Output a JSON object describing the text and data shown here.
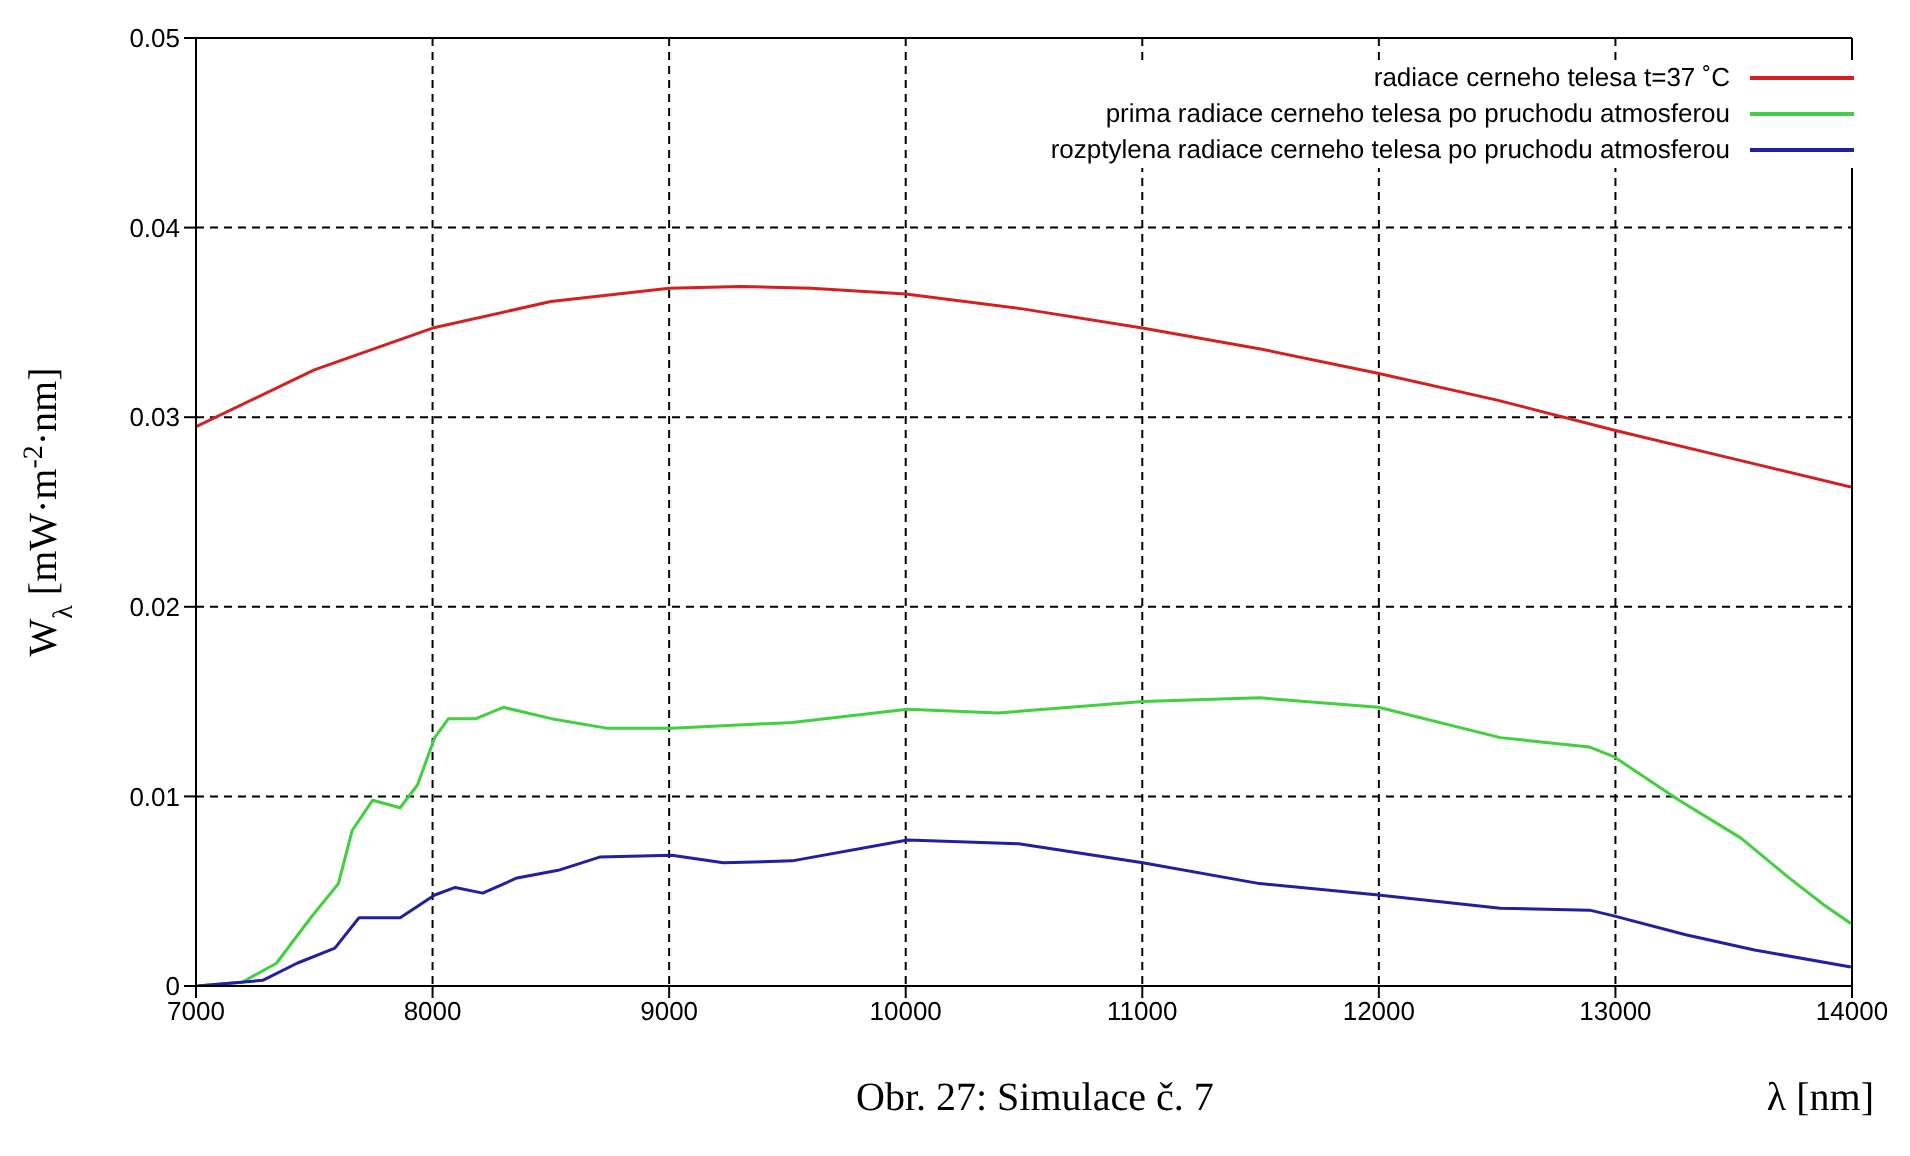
{
  "chart_data": {
    "type": "line",
    "xlabel": "λ [nm]",
    "ylabel": "W$_{λ}$ [mW·m$^{-2}$·nm]",
    "annotations": [
      "Obr. 27: Simulace č. 7"
    ],
    "xlim": [
      7000,
      14000
    ],
    "xticks": [
      7000,
      8000,
      9000,
      10000,
      11000,
      12000,
      13000,
      14000
    ],
    "ylim": [
      0,
      0.05
    ],
    "yticks": [
      0,
      0.01,
      0.02,
      0.03,
      0.04,
      0.05
    ],
    "grid": true,
    "legend": "top right",
    "marker": "none",
    "line_style": "solid",
    "series": [
      {
        "name": "radiace cerneho telesa t=37 ˚C",
        "color": "#d42020",
        "x": [
          7000,
          7500,
          8000,
          8500,
          9000,
          9300,
          9600,
          10000,
          10500,
          11000,
          11500,
          12000,
          12500,
          13000,
          13500,
          14000
        ],
        "values": [
          0.0295,
          0.0325,
          0.0347,
          0.0361,
          0.0368,
          0.0369,
          0.0368,
          0.0365,
          0.0357,
          0.0347,
          0.0336,
          0.0323,
          0.0309,
          0.0293,
          0.0278,
          0.0263
        ]
      },
      {
        "name": "prima radiace cerneho telesa po pruchodu atmosferou",
        "color": "#40d040",
        "x": [
          7006,
          7195,
          7340,
          7485,
          7602,
          7660,
          7747,
          7863,
          7936,
          8009,
          8067,
          8183,
          8299,
          8502,
          8735,
          9010,
          9520,
          10008,
          10391,
          11002,
          11496,
          11998,
          12513,
          12891,
          12993,
          13269,
          13531,
          13734,
          13879,
          13995
        ],
        "values": [
          0,
          0.0002,
          0.0012,
          0.0036,
          0.0054,
          0.0082,
          0.0098,
          0.0094,
          0.0106,
          0.0131,
          0.0141,
          0.0141,
          0.0147,
          0.0141,
          0.0136,
          0.0136,
          0.0139,
          0.0146,
          0.0144,
          0.015,
          0.0152,
          0.0147,
          0.0131,
          0.0126,
          0.0121,
          0.0098,
          0.0078,
          0.0057,
          0.0043,
          0.0033
        ]
      },
      {
        "name": "rozptylena radiace cerneho telesa po pruchodu atmosferou",
        "color": "#2020a0",
        "x": [
          7006,
          7282,
          7427,
          7587,
          7689,
          7863,
          8009,
          8096,
          8212,
          8357,
          8531,
          8706,
          9011,
          9229,
          9520,
          10008,
          10478,
          11002,
          11496,
          11998,
          12513,
          12891,
          12993,
          13297,
          13588,
          13995
        ],
        "values": [
          0,
          0.0003,
          0.0012,
          0.002,
          0.0036,
          0.0036,
          0.0048,
          0.0052,
          0.0049,
          0.0057,
          0.0061,
          0.0068,
          0.0069,
          0.0065,
          0.0066,
          0.0077,
          0.0075,
          0.0065,
          0.0054,
          0.0048,
          0.0041,
          0.004,
          0.0037,
          0.0027,
          0.0019,
          0.001
        ]
      }
    ]
  }
}
